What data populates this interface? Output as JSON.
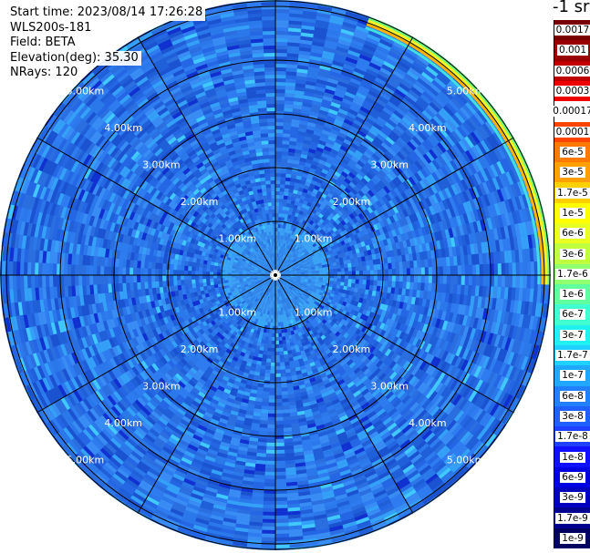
{
  "info": {
    "start_time": "Start time: 2023/08/14 17:26:28",
    "instrument": "WLS200s-181",
    "field": "Field: BETA",
    "elevation": "Elevation(deg): 35.30",
    "nrays": "NRays: 120"
  },
  "colorbar": {
    "units": "-1 sr",
    "ticks": [
      "0.0017",
      "0.001",
      "0.0006",
      "0.0003",
      "0.00017",
      "0.0001",
      "6e-5",
      "3e-5",
      "1.7e-5",
      "1e-5",
      "6e-6",
      "3e-6",
      "1.7e-6",
      "1e-6",
      "6e-7",
      "3e-7",
      "1.7e-7",
      "1e-7",
      "6e-8",
      "3e-8",
      "1.7e-8",
      "1e-8",
      "6e-9",
      "3e-9",
      "1.7e-9",
      "1e-9"
    ],
    "colors": [
      "#7a0000",
      "#990000",
      "#c00000",
      "#ee0000",
      "#ffffff",
      "#ff4400",
      "#ff7a00",
      "#ffa000",
      "#ffd000",
      "#ffff00",
      "#e8ff20",
      "#c0ff40",
      "#90ff70",
      "#60ffa0",
      "#40ffd0",
      "#20f0f0",
      "#20d0ff",
      "#20a8ff",
      "#2080ff",
      "#2060ff",
      "#2040ff",
      "#1010ff",
      "#0000e0",
      "#0000c0",
      "#000090",
      "#000060"
    ]
  },
  "rings": {
    "labels": [
      "1.00km",
      "2.00km",
      "3.00km",
      "4.00km",
      "5.00km"
    ]
  }
}
